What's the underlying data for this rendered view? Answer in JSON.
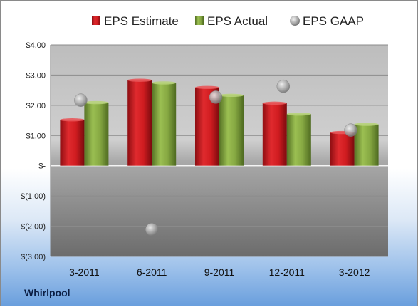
{
  "company_label": "Whirlpool",
  "chart_data": {
    "type": "bar",
    "title": "",
    "xlabel": "",
    "ylabel": "",
    "categories": [
      "3-2011",
      "6-2011",
      "9-2011",
      "12-2011",
      "3-2012"
    ],
    "ylim": [
      -3,
      4
    ],
    "yticks": [
      {
        "value": 4,
        "label": "$4.00"
      },
      {
        "value": 3,
        "label": "$3.00"
      },
      {
        "value": 2,
        "label": "$2.00"
      },
      {
        "value": 1,
        "label": "$1.00"
      },
      {
        "value": 0,
        "label": "$-"
      },
      {
        "value": -1,
        "label": "$(1.00)"
      },
      {
        "value": -2,
        "label": "$(2.00)"
      },
      {
        "value": -3,
        "label": "$(3.00)"
      }
    ],
    "grid": true,
    "legend_position": "top",
    "series": [
      {
        "name": "EPS Estimate",
        "kind": "bar",
        "color": "#c8181e",
        "values": [
          1.52,
          2.83,
          2.59,
          2.07,
          1.1
        ]
      },
      {
        "name": "EPS Actual",
        "kind": "bar",
        "color": "#7a9a3a",
        "values": [
          2.09,
          2.74,
          2.33,
          1.71,
          1.37
        ]
      },
      {
        "name": "EPS GAAP",
        "kind": "scatter",
        "color": "#a8a8a8",
        "values": [
          2.17,
          -2.11,
          2.27,
          2.63,
          1.18
        ]
      }
    ]
  }
}
